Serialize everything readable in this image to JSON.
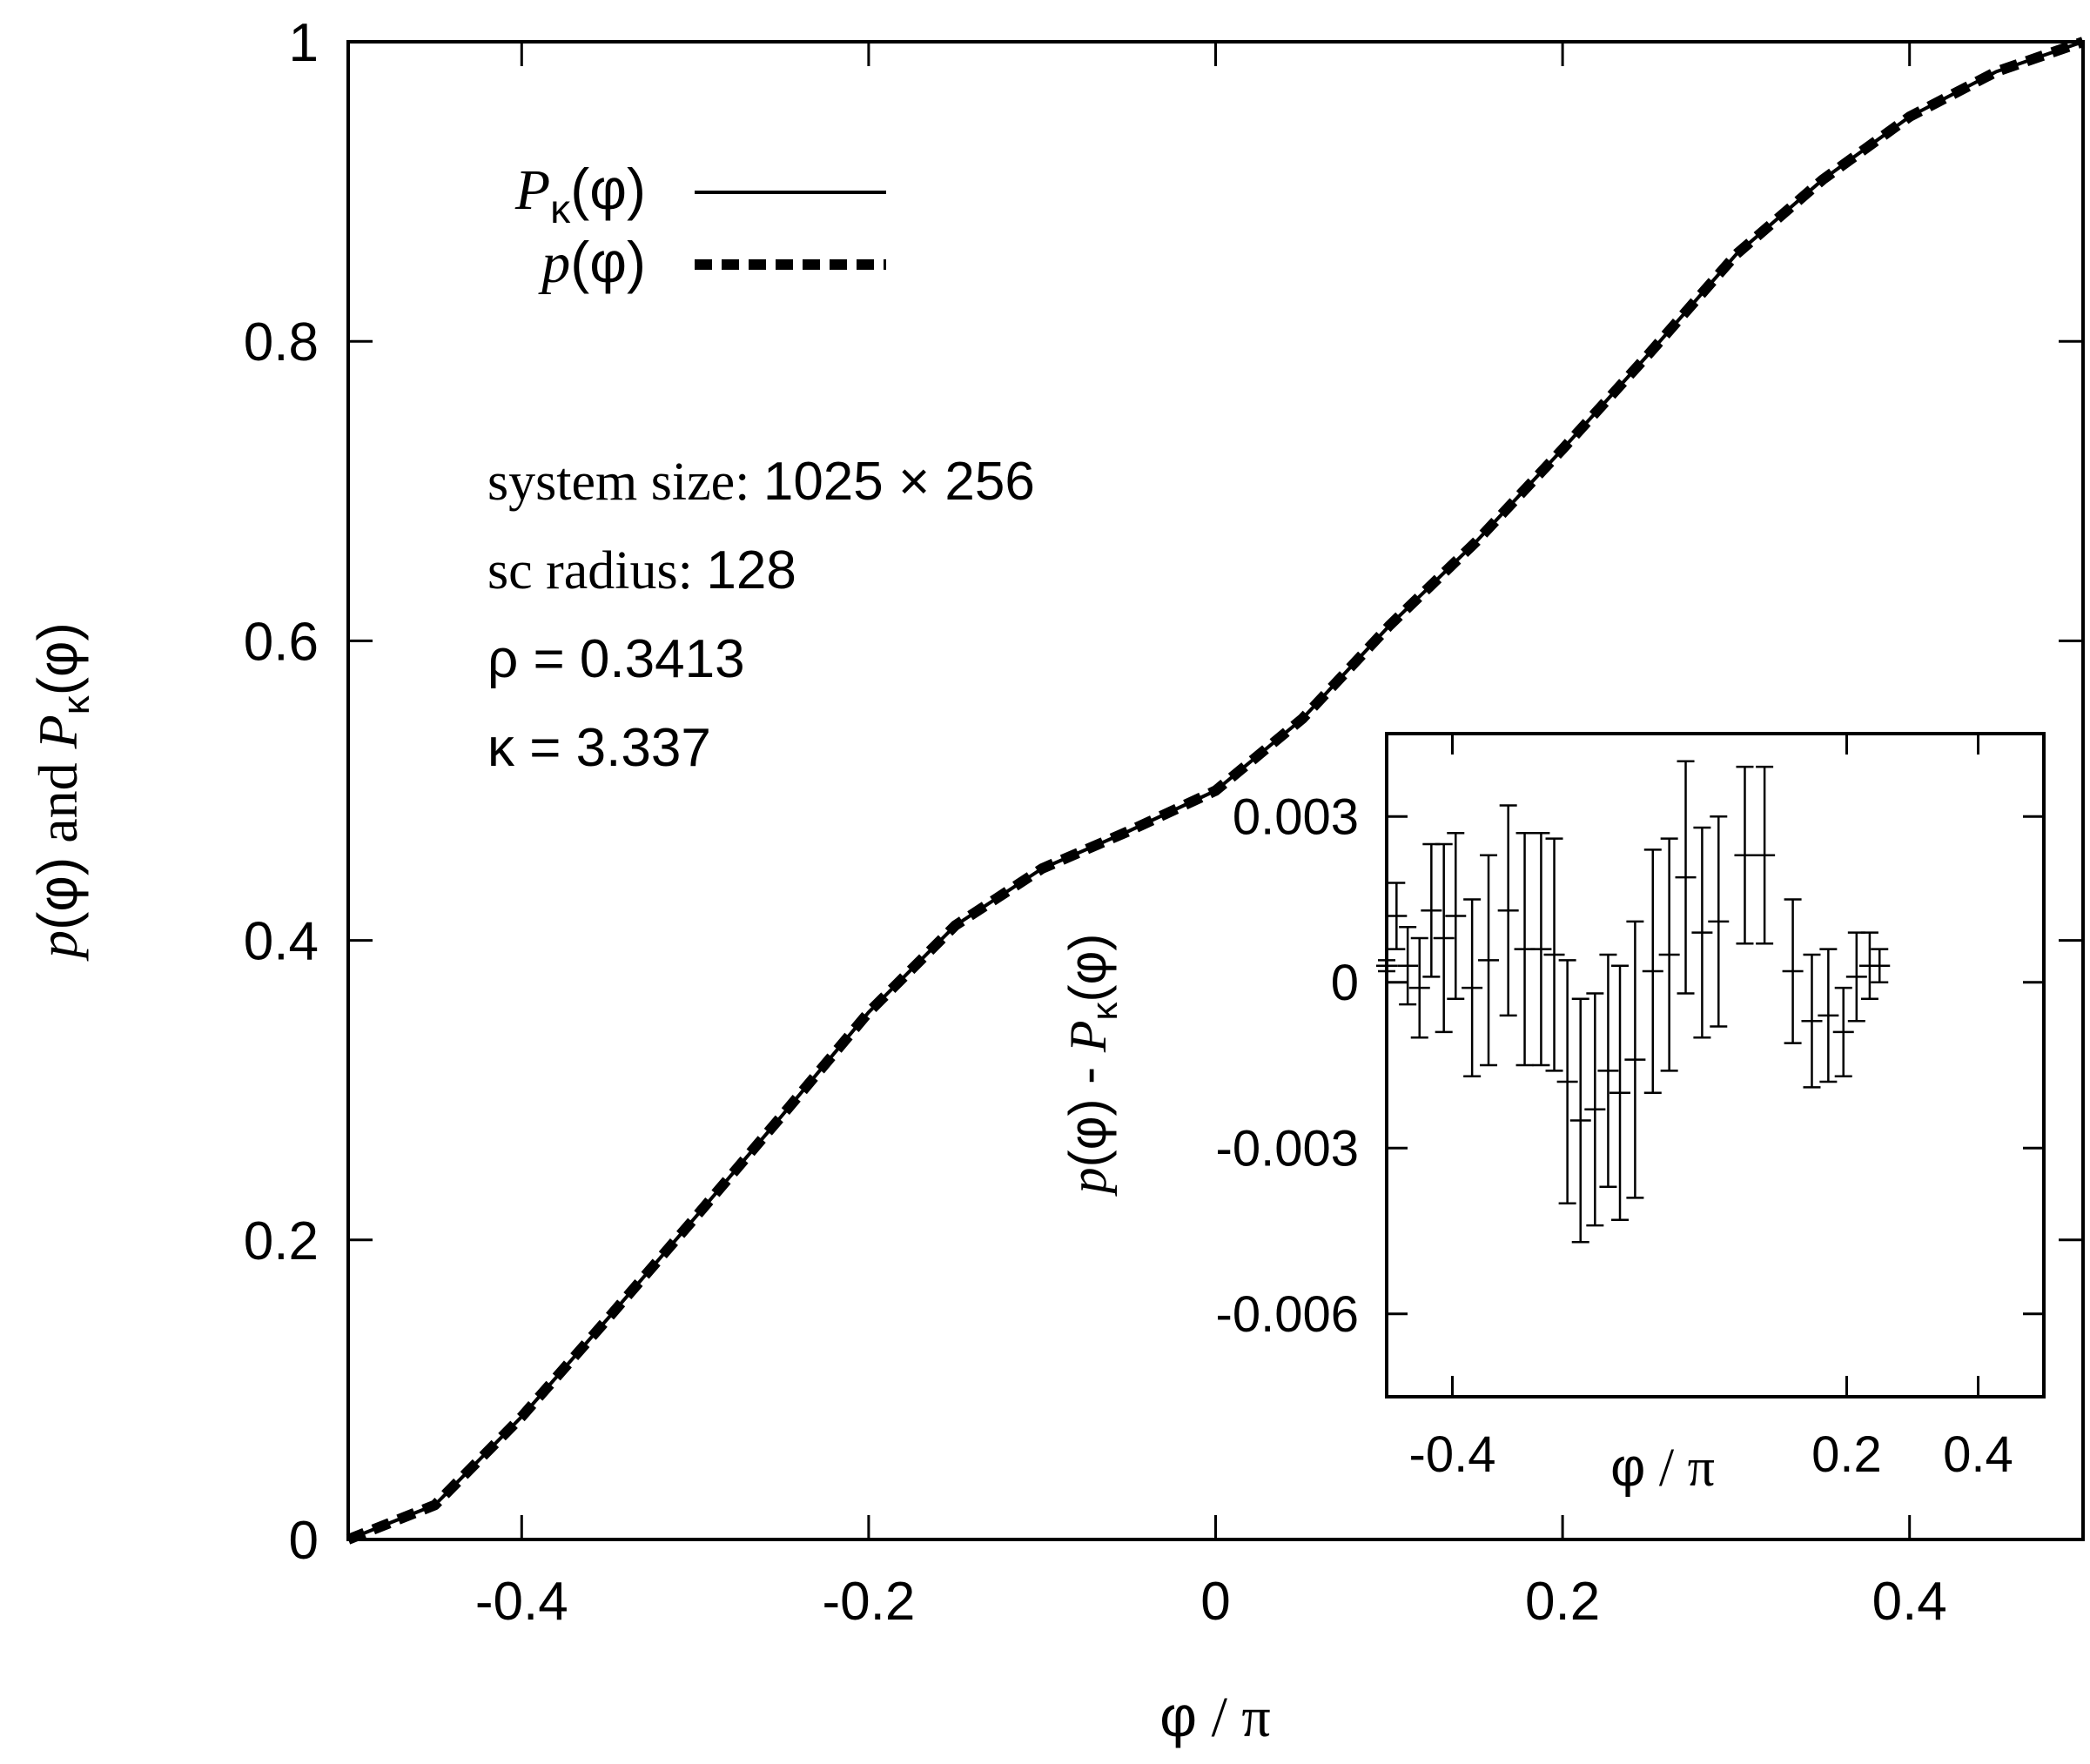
{
  "chart_data": [
    {
      "type": "line",
      "role": "main",
      "xlabel": "φ / π",
      "ylabel": "p(φ) and Pκ(φ)",
      "xlim": [
        -0.5,
        0.5
      ],
      "ylim": [
        0,
        1
      ],
      "xticks": [
        -0.4,
        -0.2,
        0,
        0.2,
        0.4
      ],
      "xtick_labels": [
        "-0.4",
        "-0.2",
        "0",
        "0.2",
        "0.4"
      ],
      "yticks": [
        0,
        0.2,
        0.4,
        0.6,
        0.8,
        1
      ],
      "ytick_labels": [
        "0",
        "0.2",
        "0.4",
        "0.6",
        "0.8",
        "1"
      ],
      "legend_position": "top-left",
      "x": [
        -0.5,
        -0.45,
        -0.4,
        -0.35,
        -0.3,
        -0.25,
        -0.2,
        -0.15,
        -0.1,
        -0.05,
        0,
        0.05,
        0.1,
        0.15,
        0.2,
        0.25,
        0.3,
        0.35,
        0.4,
        0.45,
        0.5
      ],
      "series": [
        {
          "name": "Pκ(φ)",
          "style": "solid",
          "values": [
            0,
            0.023,
            0.082,
            0.148,
            0.215,
            0.283,
            0.352,
            0.41,
            0.448,
            0.473,
            0.5,
            0.548,
            0.61,
            0.666,
            0.728,
            0.792,
            0.858,
            0.908,
            0.95,
            0.98,
            1.0
          ]
        },
        {
          "name": "p(φ)",
          "style": "dashed",
          "values": [
            0,
            0.023,
            0.082,
            0.148,
            0.215,
            0.283,
            0.352,
            0.41,
            0.448,
            0.473,
            0.5,
            0.548,
            0.61,
            0.666,
            0.728,
            0.792,
            0.858,
            0.908,
            0.95,
            0.98,
            1.0
          ]
        }
      ],
      "annotations": [
        "system size: 1025 × 256",
        "sc radius: 128",
        "ρ = 0.3413",
        "κ = 3.337"
      ]
    },
    {
      "type": "scatter",
      "role": "inset",
      "xlabel": "φ / π",
      "ylabel": "p(φ) - Pκ(φ)",
      "xlim": [
        -0.5,
        0.5
      ],
      "ylim": [
        -0.0075,
        0.0045
      ],
      "xticks": [
        -0.4,
        0.2,
        0.4
      ],
      "xtick_labels": [
        "-0.4",
        "0.2",
        "0.4"
      ],
      "yticks": [
        0.003,
        0,
        -0.003,
        -0.006
      ],
      "ytick_labels": [
        "0.003",
        "0",
        "-0.003",
        "-0.006"
      ],
      "points": [
        {
          "x": -0.5,
          "y": 0.0003,
          "err": 0.0001
        },
        {
          "x": -0.485,
          "y": 0.0012,
          "err": 0.0006
        },
        {
          "x": -0.468,
          "y": 0.0003,
          "err": 0.0007
        },
        {
          "x": -0.45,
          "y": -0.0001,
          "err": 0.0009
        },
        {
          "x": -0.432,
          "y": 0.0013,
          "err": 0.0012
        },
        {
          "x": -0.413,
          "y": 0.0008,
          "err": 0.0017
        },
        {
          "x": -0.395,
          "y": 0.0012,
          "err": 0.0015
        },
        {
          "x": -0.37,
          "y": -0.0001,
          "err": 0.0016
        },
        {
          "x": -0.345,
          "y": 0.0004,
          "err": 0.0019
        },
        {
          "x": -0.315,
          "y": 0.0013,
          "err": 0.0019
        },
        {
          "x": -0.29,
          "y": 0.0006,
          "err": 0.0021
        },
        {
          "x": -0.265,
          "y": 0.0006,
          "err": 0.0021
        },
        {
          "x": -0.245,
          "y": 0.0005,
          "err": 0.0021
        },
        {
          "x": -0.225,
          "y": -0.0018,
          "err": 0.0022
        },
        {
          "x": -0.205,
          "y": -0.0025,
          "err": 0.0022
        },
        {
          "x": -0.183,
          "y": -0.0023,
          "err": 0.0021
        },
        {
          "x": -0.163,
          "y": -0.0016,
          "err": 0.0021
        },
        {
          "x": -0.145,
          "y": -0.002,
          "err": 0.0023
        },
        {
          "x": -0.122,
          "y": -0.0014,
          "err": 0.0025
        },
        {
          "x": -0.095,
          "y": 0.0002,
          "err": 0.0022
        },
        {
          "x": -0.07,
          "y": 0.0005,
          "err": 0.0021
        },
        {
          "x": -0.045,
          "y": 0.0019,
          "err": 0.0021
        },
        {
          "x": -0.02,
          "y": 0.0009,
          "err": 0.0019
        },
        {
          "x": 0.005,
          "y": 0.0011,
          "err": 0.0019
        },
        {
          "x": 0.045,
          "y": 0.0023,
          "err": 0.0016
        },
        {
          "x": 0.075,
          "y": 0.0023,
          "err": 0.0016
        },
        {
          "x": 0.118,
          "y": 0.0002,
          "err": 0.0013
        },
        {
          "x": 0.147,
          "y": -0.0007,
          "err": 0.0012
        },
        {
          "x": 0.172,
          "y": -0.0006,
          "err": 0.0012
        },
        {
          "x": 0.195,
          "y": -0.0009,
          "err": 0.0008
        },
        {
          "x": 0.215,
          "y": 0.0001,
          "err": 0.0008
        },
        {
          "x": 0.235,
          "y": 0.0003,
          "err": 0.0006
        },
        {
          "x": 0.25,
          "y": 0.0003,
          "err": 0.0003
        }
      ]
    }
  ],
  "legend": {
    "items": [
      {
        "symbol": "P",
        "sub": "κ",
        "arg": "(φ)",
        "style": "solid"
      },
      {
        "symbol": "p",
        "sub": "",
        "arg": "(φ)",
        "style": "dashed"
      }
    ]
  },
  "labels": {
    "main_x": {
      "a": "φ",
      "b": " / ",
      "c": "π"
    },
    "main_y": {
      "p": "p",
      "phi": "(φ)",
      "and": " and ",
      "P": "P",
      "kappa": "κ",
      "phi2": "(φ)"
    },
    "inset_x": {
      "a": "φ",
      "b": " / ",
      "c": "π"
    },
    "inset_y": {
      "p": "p",
      "phi": "(φ) - ",
      "P": "P",
      "kappa": "κ",
      "phi2": "(φ)"
    }
  },
  "annotations": {
    "size_label": "system size: ",
    "size_value": "1025 × 256",
    "radius_label": "sc radius: ",
    "radius_value": "128",
    "rho": "ρ = 0.3413",
    "kappa": "κ = 3.337"
  },
  "colors": {
    "ink": "#000000",
    "background": "#ffffff"
  }
}
